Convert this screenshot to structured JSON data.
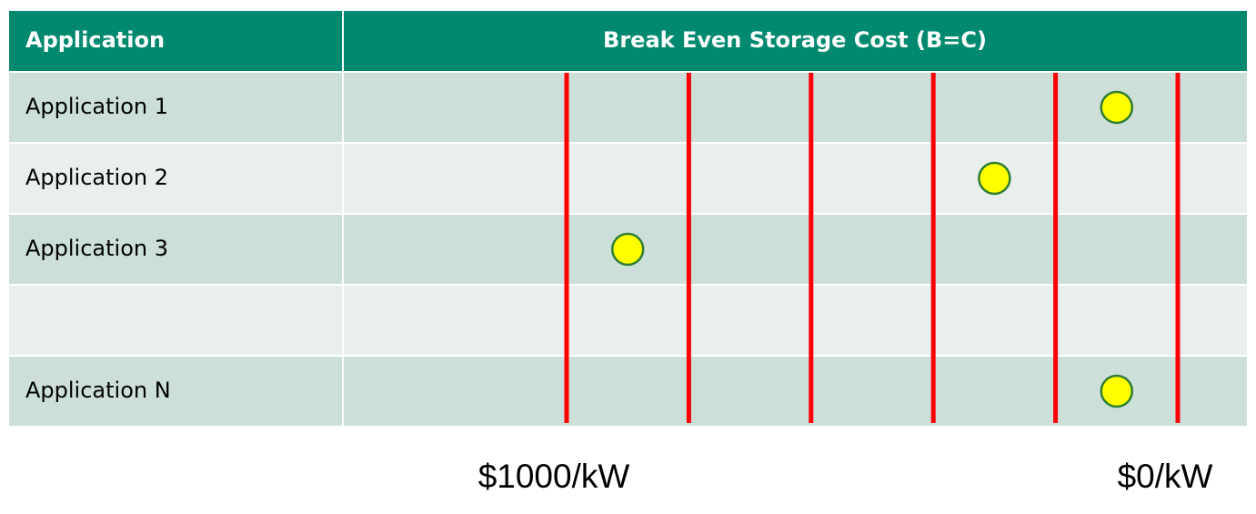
{
  "chart_data": {
    "type": "dot_table",
    "column_headers": [
      "Application",
      "Break Even Storage Cost (B=C)"
    ],
    "categories": [
      "Application 1",
      "Application 2",
      "Application 3",
      null,
      "Application N"
    ],
    "values": [
      100,
      300,
      900,
      null,
      100
    ],
    "xlim": [
      1000,
      0
    ],
    "xticks": [
      {
        "value": 1000,
        "label": "$1000/kW"
      },
      {
        "value": 0,
        "label": "$0/kW"
      }
    ],
    "grid_lines": [
      1000,
      800,
      600,
      400,
      200,
      0
    ],
    "header_color": "#00896f",
    "row_colors": [
      "#cddfd9",
      "#e8efec"
    ],
    "grid_color": "#ff0000",
    "dot_color": "#ffff00"
  }
}
